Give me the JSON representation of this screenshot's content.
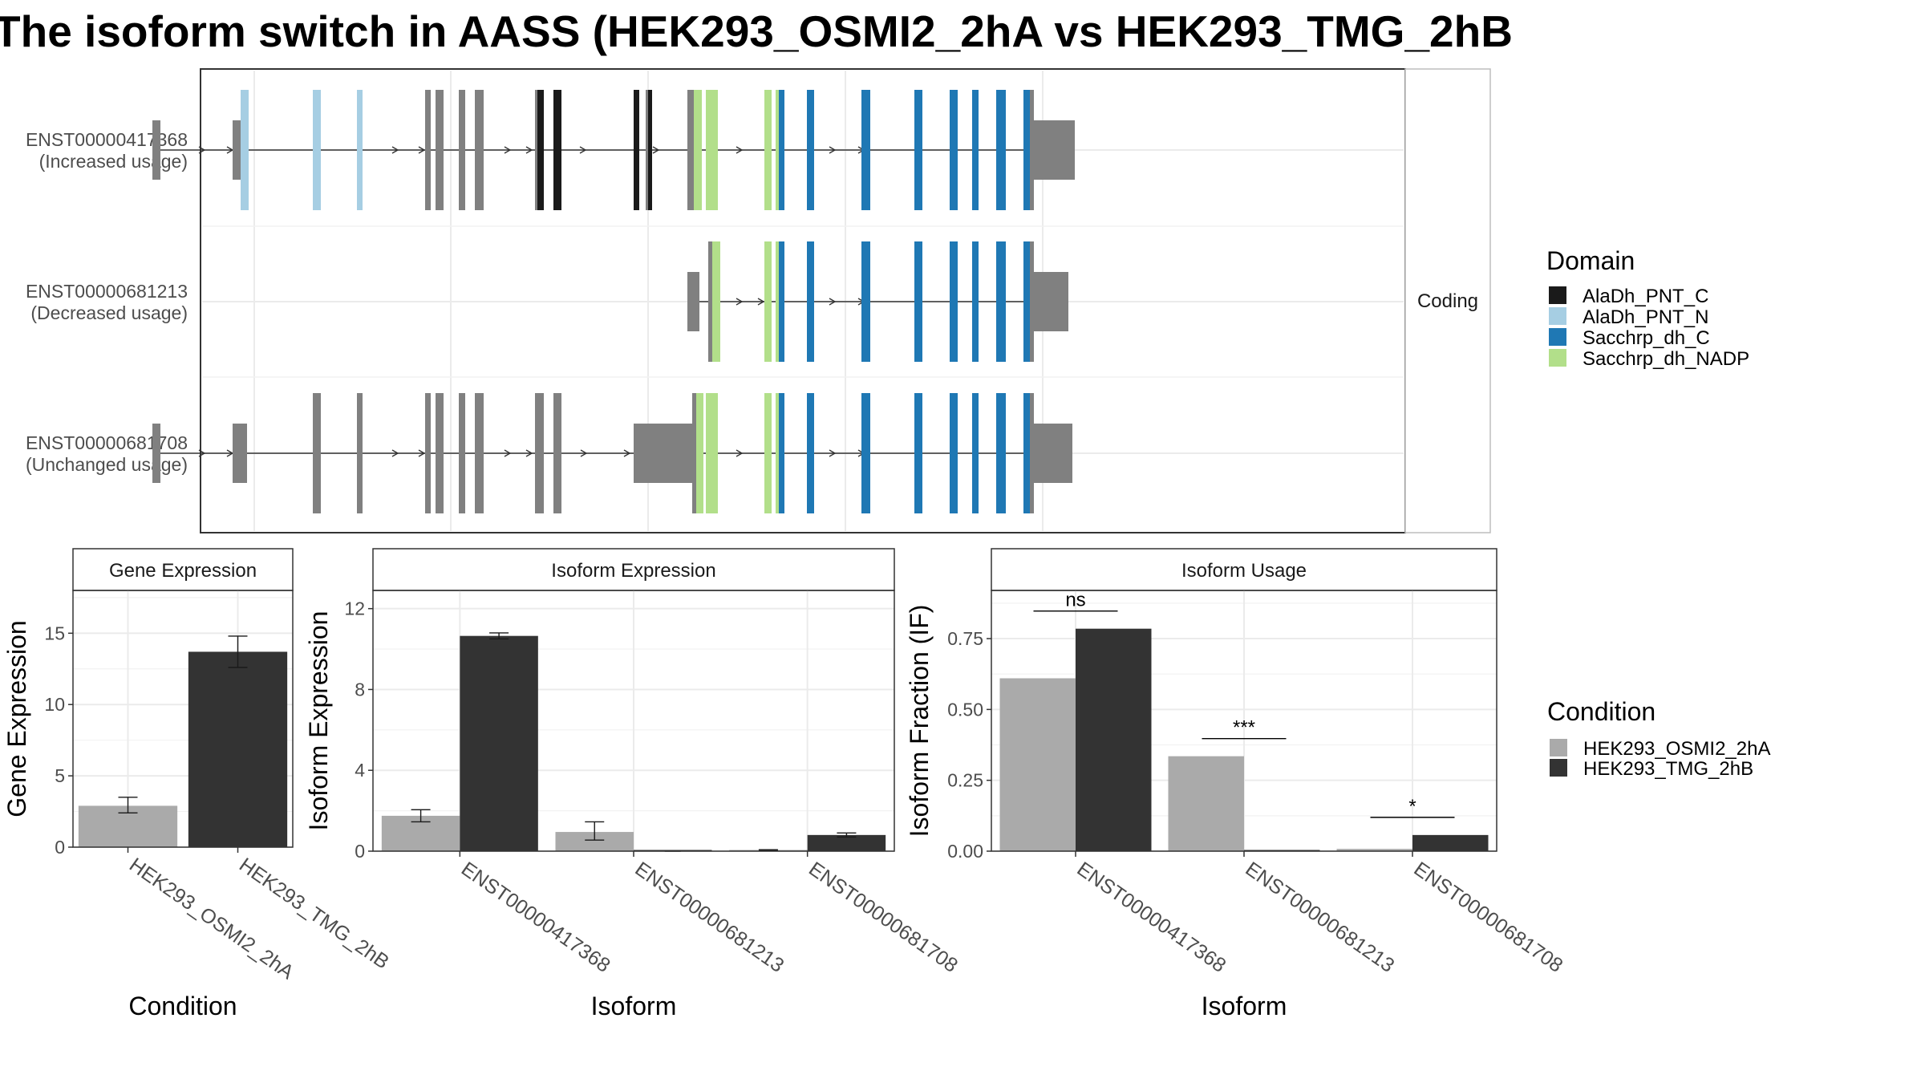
{
  "title": "The isoform switch in AASS (HEK293_OSMI2_2hA vs HEK293_TMG_2hB",
  "colors": {
    "exon": "#808080",
    "AlaDh_PNT_C": "#1a1a1a",
    "AlaDh_PNT_N": "#a6cee3",
    "Sacchrp_dh_C": "#1f78b4",
    "Sacchrp_dh_NADP": "#b2df8a",
    "cond_a": "#aaaaaa",
    "cond_b": "#333333"
  },
  "structure": {
    "facet_label": "Coding",
    "transcripts": [
      {
        "id": "ENST00000417368",
        "usage": "(Increased usage)",
        "span": [
          190,
          1360
        ],
        "features": [
          [
            190,
            200,
            "exon",
            "s"
          ],
          [
            290,
            300,
            "exon",
            "s"
          ],
          [
            300,
            310,
            "AlaDh_PNT_N",
            "b"
          ],
          [
            390,
            400,
            "AlaDh_PNT_N",
            "b"
          ],
          [
            445,
            452,
            "AlaDh_PNT_N",
            "b"
          ],
          [
            530,
            537,
            "exon",
            "b"
          ],
          [
            543,
            553,
            "exon",
            "b"
          ],
          [
            572,
            580,
            "exon",
            "b"
          ],
          [
            592,
            603,
            "exon",
            "b"
          ],
          [
            667,
            670,
            "exon",
            "b"
          ],
          [
            670,
            678,
            "AlaDh_PNT_C",
            "b"
          ],
          [
            690,
            700,
            "AlaDh_PNT_C",
            "b"
          ],
          [
            790,
            797,
            "AlaDh_PNT_C",
            "b"
          ],
          [
            805,
            808,
            "exon",
            "b"
          ],
          [
            808,
            813,
            "AlaDh_PNT_C",
            "b"
          ],
          [
            857,
            865,
            "exon",
            "b"
          ],
          [
            865,
            875,
            "Sacchrp_dh_NADP",
            "b"
          ],
          [
            880,
            895,
            "Sacchrp_dh_NADP",
            "b"
          ],
          [
            953,
            962,
            "Sacchrp_dh_NADP",
            "b"
          ],
          [
            967,
            971,
            "Sacchrp_dh_NADP",
            "b"
          ],
          [
            971,
            978,
            "Sacchrp_dh_C",
            "b"
          ],
          [
            1006,
            1015,
            "Sacchrp_dh_C",
            "b"
          ],
          [
            1074,
            1085,
            "Sacchrp_dh_C",
            "b"
          ],
          [
            1140,
            1150,
            "Sacchrp_dh_C",
            "b"
          ],
          [
            1184,
            1194,
            "Sacchrp_dh_C",
            "b"
          ],
          [
            1212,
            1220,
            "Sacchrp_dh_C",
            "b"
          ],
          [
            1242,
            1254,
            "Sacchrp_dh_C",
            "b"
          ],
          [
            1276,
            1284,
            "Sacchrp_dh_C",
            "b"
          ],
          [
            1284,
            1289,
            "exon",
            "b"
          ],
          [
            1289,
            1340,
            "exon",
            "s"
          ]
        ],
        "arrows": [
          255,
          290,
          496,
          529,
          636,
          663,
          730,
          821,
          925,
          1041,
          1077
        ]
      },
      {
        "id": "ENST00000681213",
        "usage": "(Decreased usage)",
        "span": [
          857,
          1330
        ],
        "features": [
          [
            857,
            872,
            "exon",
            "s"
          ],
          [
            883,
            888,
            "exon",
            "b"
          ],
          [
            888,
            898,
            "Sacchrp_dh_NADP",
            "b"
          ],
          [
            953,
            962,
            "Sacchrp_dh_NADP",
            "b"
          ],
          [
            967,
            971,
            "Sacchrp_dh_NADP",
            "b"
          ],
          [
            971,
            978,
            "Sacchrp_dh_C",
            "b"
          ],
          [
            1006,
            1015,
            "Sacchrp_dh_C",
            "b"
          ],
          [
            1074,
            1085,
            "Sacchrp_dh_C",
            "b"
          ],
          [
            1140,
            1150,
            "Sacchrp_dh_C",
            "b"
          ],
          [
            1184,
            1194,
            "Sacchrp_dh_C",
            "b"
          ],
          [
            1212,
            1220,
            "Sacchrp_dh_C",
            "b"
          ],
          [
            1242,
            1254,
            "Sacchrp_dh_C",
            "b"
          ],
          [
            1276,
            1284,
            "Sacchrp_dh_C",
            "b"
          ],
          [
            1284,
            1289,
            "exon",
            "b"
          ],
          [
            1289,
            1332,
            "exon",
            "s"
          ]
        ],
        "arrows": [
          925,
          952,
          1041,
          1077
        ]
      },
      {
        "id": "ENST00000681708",
        "usage": "(Unchanged usage)",
        "span": [
          190,
          1360
        ],
        "features": [
          [
            190,
            200,
            "exon",
            "s"
          ],
          [
            290,
            308,
            "exon",
            "s"
          ],
          [
            390,
            400,
            "exon",
            "b"
          ],
          [
            445,
            452,
            "exon",
            "b"
          ],
          [
            530,
            537,
            "exon",
            "b"
          ],
          [
            543,
            553,
            "exon",
            "b"
          ],
          [
            572,
            580,
            "exon",
            "b"
          ],
          [
            592,
            603,
            "exon",
            "b"
          ],
          [
            667,
            678,
            "exon",
            "b"
          ],
          [
            690,
            700,
            "exon",
            "b"
          ],
          [
            790,
            863,
            "exon",
            "s"
          ],
          [
            863,
            868,
            "exon",
            "b"
          ],
          [
            868,
            877,
            "Sacchrp_dh_NADP",
            "b"
          ],
          [
            880,
            895,
            "Sacchrp_dh_NADP",
            "b"
          ],
          [
            953,
            962,
            "Sacchrp_dh_NADP",
            "b"
          ],
          [
            967,
            971,
            "Sacchrp_dh_NADP",
            "b"
          ],
          [
            971,
            978,
            "Sacchrp_dh_C",
            "b"
          ],
          [
            1006,
            1015,
            "Sacchrp_dh_C",
            "b"
          ],
          [
            1074,
            1085,
            "Sacchrp_dh_C",
            "b"
          ],
          [
            1140,
            1150,
            "Sacchrp_dh_C",
            "b"
          ],
          [
            1184,
            1194,
            "Sacchrp_dh_C",
            "b"
          ],
          [
            1212,
            1220,
            "Sacchrp_dh_C",
            "b"
          ],
          [
            1242,
            1254,
            "Sacchrp_dh_C",
            "b"
          ],
          [
            1276,
            1284,
            "Sacchrp_dh_C",
            "b"
          ],
          [
            1284,
            1289,
            "exon",
            "b"
          ],
          [
            1289,
            1337,
            "exon",
            "s"
          ]
        ],
        "arrows": [
          255,
          290,
          496,
          529,
          636,
          663,
          731,
          785,
          925,
          1041,
          1077
        ]
      }
    ]
  },
  "legends": {
    "domain": {
      "title": "Domain",
      "items": [
        {
          "label": "AlaDh_PNT_C",
          "key": "AlaDh_PNT_C"
        },
        {
          "label": "AlaDh_PNT_N",
          "key": "AlaDh_PNT_N"
        },
        {
          "label": "Sacchrp_dh_C",
          "key": "Sacchrp_dh_C"
        },
        {
          "label": "Sacchrp_dh_NADP",
          "key": "Sacchrp_dh_NADP"
        }
      ]
    },
    "condition": {
      "title": "Condition",
      "items": [
        {
          "label": "HEK293_OSMI2_2hA",
          "key": "cond_a"
        },
        {
          "label": "HEK293_TMG_2hB",
          "key": "cond_b"
        }
      ]
    }
  },
  "chart_data": [
    {
      "type": "bar",
      "title": "Gene Expression",
      "xlabel": "Condition",
      "ylabel": "Gene Expression",
      "ylim": [
        0,
        18
      ],
      "yticks": [
        0,
        5,
        10,
        15
      ],
      "categories": [
        "HEK293_OSMI2_2hA",
        "HEK293_TMG_2hB"
      ],
      "values": [
        2.9,
        13.7
      ],
      "errors": [
        [
          2.4,
          3.5
        ],
        [
          12.6,
          14.8
        ]
      ]
    },
    {
      "type": "bar",
      "title": "Isoform Expression",
      "xlabel": "Isoform",
      "ylabel": "Isoform Expression",
      "ylim": [
        0,
        12.9
      ],
      "yticks": [
        0,
        4,
        8,
        12
      ],
      "categories": [
        "ENST00000417368",
        "ENST00000681213",
        "ENST00000681708"
      ],
      "series": [
        {
          "name": "HEK293_OSMI2_2hA",
          "values": [
            1.75,
            0.95,
            0.05
          ],
          "errors": [
            [
              1.45,
              2.05
            ],
            [
              0.55,
              1.45
            ],
            [
              0.03,
              0.07
            ]
          ]
        },
        {
          "name": "HEK293_TMG_2hB",
          "values": [
            10.65,
            0.0,
            0.8
          ],
          "errors": [
            [
              10.5,
              10.8
            ],
            [
              0.0,
              0.0
            ],
            [
              0.7,
              0.9
            ]
          ]
        }
      ]
    },
    {
      "type": "bar",
      "title": "Isoform Usage",
      "xlabel": "Isoform",
      "ylabel": "Isoform Fraction (IF)",
      "ylim": [
        0,
        0.92
      ],
      "yticks": [
        0.0,
        0.25,
        0.5,
        0.75
      ],
      "ytick_labels": [
        "0.00",
        "0.25",
        "0.50",
        "0.75"
      ],
      "categories": [
        "ENST00000417368",
        "ENST00000681213",
        "ENST00000681708"
      ],
      "series": [
        {
          "name": "HEK293_OSMI2_2hA",
          "values": [
            0.61,
            0.335,
            0.008
          ]
        },
        {
          "name": "HEK293_TMG_2hB",
          "values": [
            0.785,
            0.0,
            0.057
          ]
        }
      ],
      "significance": [
        "ns",
        "***",
        "*"
      ]
    }
  ]
}
